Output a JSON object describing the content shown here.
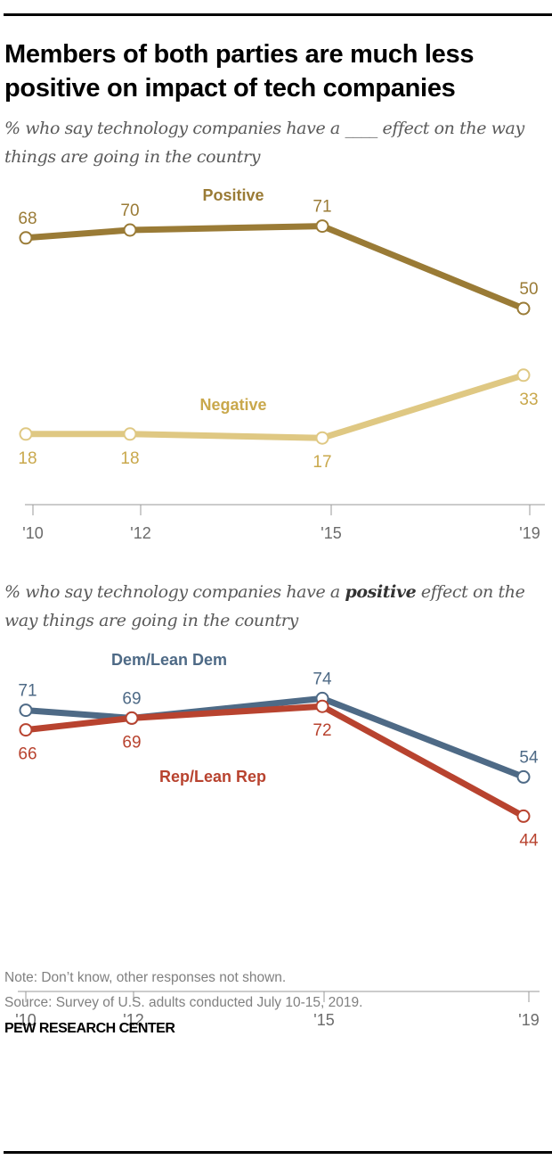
{
  "title": "Members of both parties are much less positive on impact of tech companies",
  "subtitle1": "% who say technology companies have a ____ effect on the way things are going in the country",
  "subtitle2_pre": "% who say technology companies have a ",
  "subtitle2_bold": "positive",
  "subtitle2_post": " effect on the way things are going in the country",
  "note": "Note: Don’t know, other responses not shown.",
  "source": "Source: Survey of U.S. adults conducted July 10-15, 2019.",
  "brand": "PEW RESEARCH CENTER",
  "chart_data": [
    {
      "type": "line",
      "title": "% who say technology companies have a ____ effect on the way things are going in the country",
      "categories": [
        "'10",
        "'12",
        "'15",
        "'19"
      ],
      "x": [
        2010,
        2012,
        2015,
        2019
      ],
      "ylim": [
        0,
        100
      ],
      "grid": false,
      "series": [
        {
          "name": "Positive",
          "color": "#9a7b36",
          "values": [
            68,
            70,
            71,
            50
          ],
          "label_pos": [
            "above",
            "above",
            "above",
            "above"
          ]
        },
        {
          "name": "Negative",
          "color": "#dfc883",
          "label_color": "#c9a84c",
          "values": [
            18,
            18,
            17,
            33
          ],
          "label_pos": [
            "below",
            "below",
            "below",
            "below"
          ]
        }
      ]
    },
    {
      "type": "line",
      "title": "% who say technology companies have a positive effect on the way things are going in the country",
      "categories": [
        "'10",
        "'12",
        "'15",
        "'19"
      ],
      "x": [
        2010,
        2012,
        2015,
        2019
      ],
      "ylim": [
        0,
        100
      ],
      "grid": false,
      "series": [
        {
          "name": "Dem/Lean Dem",
          "color": "#4e6a86",
          "values": [
            71,
            69,
            74,
            54
          ],
          "label_pos": [
            "above",
            "above",
            "above",
            "above"
          ]
        },
        {
          "name": "Rep/Lean Rep",
          "color": "#b8432f",
          "values": [
            66,
            69,
            72,
            44
          ],
          "label_pos": [
            "below",
            "below",
            "below",
            "below"
          ]
        }
      ]
    }
  ]
}
